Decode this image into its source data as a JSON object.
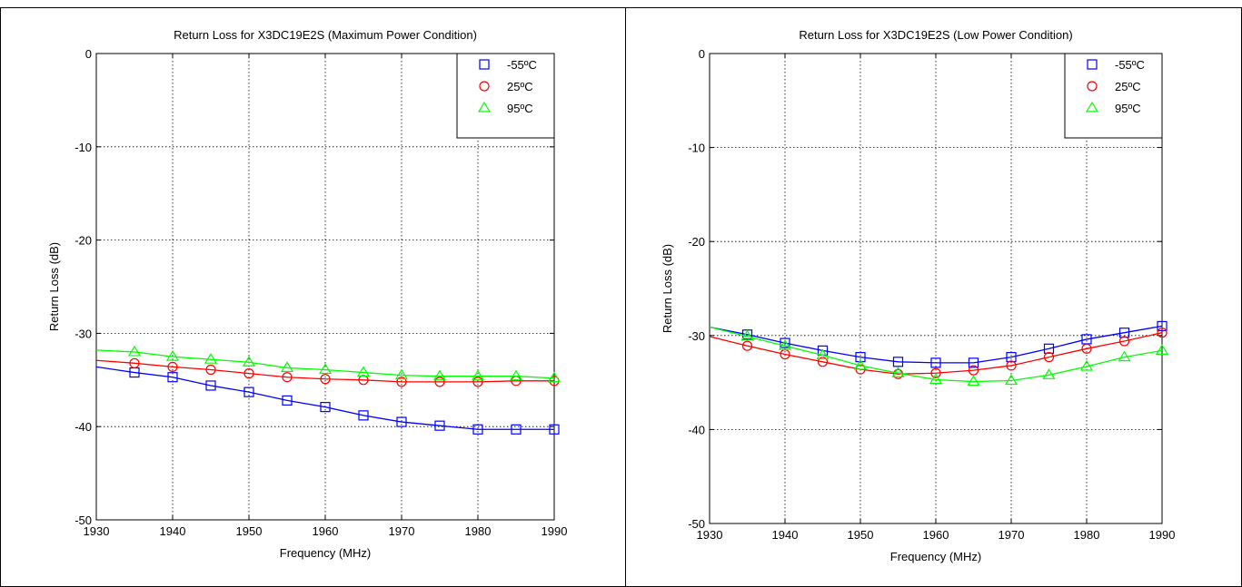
{
  "chart_data": [
    {
      "type": "line",
      "title": "Return Loss for X3DC19E2S (Maximum Power Condition)",
      "xlabel": "Frequency (MHz)",
      "ylabel": "Return Loss (dB)",
      "xlim": [
        1930,
        1990
      ],
      "ylim": [
        -50,
        0
      ],
      "xticks": [
        1930,
        1940,
        1950,
        1960,
        1970,
        1980,
        1990
      ],
      "yticks": [
        0,
        -10,
        -20,
        -30,
        -40,
        -50
      ],
      "grid": true,
      "legend_position": "top-right",
      "series": [
        {
          "name": "-55ºC",
          "color": "#0000ff",
          "marker": "square",
          "x": [
            1930,
            1935,
            1940,
            1945,
            1950,
            1955,
            1960,
            1965,
            1970,
            1975,
            1980,
            1985,
            1990
          ],
          "values": [
            -33.6,
            -34.2,
            -34.7,
            -35.6,
            -36.3,
            -37.2,
            -37.9,
            -38.8,
            -39.5,
            -39.9,
            -40.3,
            -40.3,
            -40.3
          ]
        },
        {
          "name": "25ºC",
          "color": "#ff0000",
          "marker": "circle",
          "x": [
            1930,
            1935,
            1940,
            1945,
            1950,
            1955,
            1960,
            1965,
            1970,
            1975,
            1980,
            1985,
            1990
          ],
          "values": [
            -32.9,
            -33.2,
            -33.6,
            -33.9,
            -34.3,
            -34.7,
            -34.9,
            -35.0,
            -35.2,
            -35.2,
            -35.2,
            -35.1,
            -35.1
          ]
        },
        {
          "name": "95ºC",
          "color": "#00ff00",
          "marker": "triangle",
          "x": [
            1930,
            1935,
            1940,
            1945,
            1950,
            1955,
            1960,
            1965,
            1970,
            1975,
            1980,
            1985,
            1990
          ],
          "values": [
            -31.8,
            -32.0,
            -32.5,
            -32.8,
            -33.1,
            -33.7,
            -33.9,
            -34.2,
            -34.5,
            -34.6,
            -34.6,
            -34.6,
            -34.8
          ]
        }
      ]
    },
    {
      "type": "line",
      "title": "Return Loss for X3DC19E2S (Low Power Condition)",
      "xlabel": "Frequency (MHz)",
      "ylabel": "Return Loss (dB)",
      "xlim": [
        1930,
        1990
      ],
      "ylim": [
        -50,
        0
      ],
      "xticks": [
        1930,
        1940,
        1950,
        1960,
        1970,
        1980,
        1990
      ],
      "yticks": [
        0,
        -10,
        -20,
        -30,
        -40,
        -50
      ],
      "grid": true,
      "legend_position": "top-right",
      "series": [
        {
          "name": "-55ºC",
          "color": "#0000ff",
          "marker": "square",
          "x": [
            1930,
            1935,
            1940,
            1945,
            1950,
            1955,
            1960,
            1965,
            1970,
            1975,
            1980,
            1985,
            1990
          ],
          "values": [
            -29.1,
            -29.9,
            -30.8,
            -31.6,
            -32.3,
            -32.8,
            -32.9,
            -32.9,
            -32.3,
            -31.4,
            -30.4,
            -29.7,
            -29.0
          ]
        },
        {
          "name": "25ºC",
          "color": "#ff0000",
          "marker": "circle",
          "x": [
            1930,
            1935,
            1940,
            1945,
            1950,
            1955,
            1960,
            1965,
            1970,
            1975,
            1980,
            1985,
            1990
          ],
          "values": [
            -30.1,
            -31.1,
            -32.0,
            -32.8,
            -33.6,
            -34.1,
            -34.0,
            -33.7,
            -33.2,
            -32.3,
            -31.4,
            -30.6,
            -29.7
          ]
        },
        {
          "name": "95ºC",
          "color": "#00ff00",
          "marker": "triangle",
          "x": [
            1930,
            1935,
            1940,
            1945,
            1950,
            1955,
            1960,
            1965,
            1970,
            1975,
            1980,
            1985,
            1990
          ],
          "values": [
            -29.1,
            -30.1,
            -31.1,
            -32.1,
            -33.2,
            -34.0,
            -34.7,
            -34.9,
            -34.8,
            -34.2,
            -33.3,
            -32.3,
            -31.6
          ]
        }
      ]
    }
  ]
}
